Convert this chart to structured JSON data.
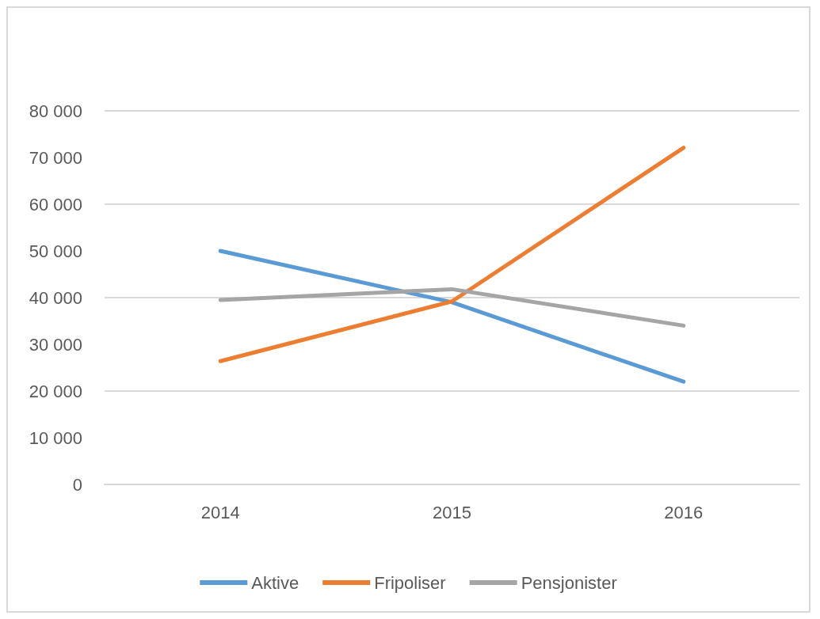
{
  "chart_data": {
    "type": "line",
    "categories": [
      "2014",
      "2015",
      "2016"
    ],
    "series": [
      {
        "name": "Aktive",
        "color": "#5b9bd5",
        "values": [
          50000,
          39000,
          22000
        ]
      },
      {
        "name": "Fripoliser",
        "color": "#ed7d31",
        "values": [
          26400,
          39200,
          72100
        ]
      },
      {
        "name": "Pensjonister",
        "color": "#a5a5a5",
        "values": [
          39500,
          41800,
          34000
        ]
      }
    ],
    "ylim": [
      0,
      80000
    ],
    "yticks": [
      {
        "value": 0,
        "label": "0"
      },
      {
        "value": 10000,
        "label": "10 000"
      },
      {
        "value": 20000,
        "label": "20 000"
      },
      {
        "value": 30000,
        "label": "30 000"
      },
      {
        "value": 40000,
        "label": "40 000"
      },
      {
        "value": 50000,
        "label": "50 000"
      },
      {
        "value": 60000,
        "label": "60 000"
      },
      {
        "value": 70000,
        "label": "70 000"
      },
      {
        "value": 80000,
        "label": "80 000"
      }
    ],
    "grid": "y",
    "legend": "bottom",
    "marker": "none",
    "line_style": "solid"
  }
}
